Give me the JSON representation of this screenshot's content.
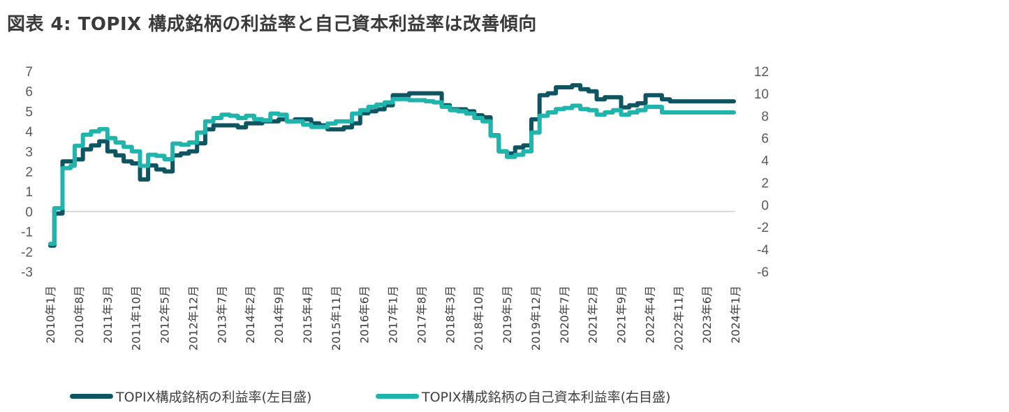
{
  "title": "図表 4: TOPIX 構成銘柄の利益率と自己資本利益率は改善傾向",
  "colors": {
    "series1": "#0f5561",
    "series2": "#1fb4ac",
    "zero_line": "#d9d9d9",
    "text": "#595959"
  },
  "chart_data": {
    "type": "line",
    "title": "図表 4: TOPIX 構成銘柄の利益率と自己資本利益率は改善傾向",
    "x_tick_labels": [
      "2010年1月",
      "2010年8月",
      "2011年3月",
      "2011年10月",
      "2012年5月",
      "2012年12月",
      "2013年7月",
      "2014年2月",
      "2014年9月",
      "2015年4月",
      "2015年11月",
      "2016年6月",
      "2017年1月",
      "2017年8月",
      "2018年3月",
      "2018年10月",
      "2019年5月",
      "2019年12月",
      "2020年7月",
      "2021年2月",
      "2021年9月",
      "2022年4月",
      "2022年11月",
      "2023年6月",
      "2024年1月"
    ],
    "y_left": {
      "range": [
        -3,
        7
      ],
      "ticks": [
        -3,
        -2,
        -1,
        0,
        1,
        2,
        3,
        4,
        5,
        6,
        7
      ]
    },
    "y_right": {
      "range": [
        -6,
        12
      ],
      "ticks": [
        -6,
        -4,
        -2,
        0,
        2,
        4,
        6,
        8,
        10,
        12
      ]
    },
    "grid": false,
    "legend_position": "bottom",
    "series": [
      {
        "name": "TOPIX構成銘柄の利益率(左目盛)",
        "axis": "left",
        "points": [
          [
            "2010-01",
            -1.7
          ],
          [
            "2010-02",
            -0.1
          ],
          [
            "2010-04",
            2.5
          ],
          [
            "2010-06",
            2.5
          ],
          [
            "2010-07",
            2.6
          ],
          [
            "2010-09",
            3.1
          ],
          [
            "2010-11",
            3.3
          ],
          [
            "2011-01",
            3.5
          ],
          [
            "2011-03",
            3.0
          ],
          [
            "2011-05",
            2.8
          ],
          [
            "2011-07",
            2.5
          ],
          [
            "2011-09",
            2.4
          ],
          [
            "2011-11",
            1.6
          ],
          [
            "2012-01",
            2.3
          ],
          [
            "2012-03",
            2.1
          ],
          [
            "2012-05",
            2.0
          ],
          [
            "2012-07",
            2.8
          ],
          [
            "2012-09",
            2.9
          ],
          [
            "2012-11",
            3.0
          ],
          [
            "2013-01",
            3.4
          ],
          [
            "2013-03",
            4.1
          ],
          [
            "2013-05",
            4.3
          ],
          [
            "2013-07",
            4.3
          ],
          [
            "2013-09",
            4.3
          ],
          [
            "2013-11",
            4.2
          ],
          [
            "2014-01",
            4.4
          ],
          [
            "2014-03",
            4.4
          ],
          [
            "2014-05",
            4.5
          ],
          [
            "2014-07",
            4.5
          ],
          [
            "2014-09",
            4.6
          ],
          [
            "2014-11",
            4.5
          ],
          [
            "2015-01",
            4.6
          ],
          [
            "2015-03",
            4.6
          ],
          [
            "2015-05",
            4.4
          ],
          [
            "2015-07",
            4.3
          ],
          [
            "2015-09",
            4.1
          ],
          [
            "2015-11",
            4.1
          ],
          [
            "2016-01",
            4.2
          ],
          [
            "2016-03",
            4.4
          ],
          [
            "2016-05",
            4.9
          ],
          [
            "2016-07",
            5.0
          ],
          [
            "2016-09",
            5.1
          ],
          [
            "2016-11",
            5.3
          ],
          [
            "2017-01",
            5.8
          ],
          [
            "2017-03",
            5.8
          ],
          [
            "2017-05",
            5.9
          ],
          [
            "2017-07",
            5.9
          ],
          [
            "2017-09",
            5.9
          ],
          [
            "2017-11",
            5.9
          ],
          [
            "2018-01",
            5.3
          ],
          [
            "2018-03",
            5.1
          ],
          [
            "2018-05",
            5.1
          ],
          [
            "2018-07",
            5.0
          ],
          [
            "2018-09",
            4.8
          ],
          [
            "2018-11",
            4.7
          ],
          [
            "2019-01",
            3.8
          ],
          [
            "2019-03",
            3.0
          ],
          [
            "2019-05",
            2.9
          ],
          [
            "2019-07",
            3.2
          ],
          [
            "2019-09",
            3.3
          ],
          [
            "2019-11",
            4.6
          ],
          [
            "2020-01",
            5.8
          ],
          [
            "2020-03",
            5.9
          ],
          [
            "2020-05",
            6.2
          ],
          [
            "2020-07",
            6.2
          ],
          [
            "2020-09",
            6.3
          ],
          [
            "2020-11",
            6.1
          ],
          [
            "2021-01",
            6.0
          ],
          [
            "2021-03",
            5.6
          ],
          [
            "2021-05",
            5.7
          ],
          [
            "2021-07",
            5.7
          ],
          [
            "2021-09",
            5.2
          ],
          [
            "2021-11",
            5.3
          ],
          [
            "2022-01",
            5.4
          ],
          [
            "2022-03",
            5.8
          ],
          [
            "2022-05",
            5.8
          ],
          [
            "2022-07",
            5.6
          ],
          [
            "2022-09",
            5.5
          ]
        ]
      },
      {
        "name": "TOPIX構成銘柄の自己資本利益率(右目盛)",
        "axis": "right",
        "points": [
          [
            "2010-01",
            -3.5
          ],
          [
            "2010-02",
            -0.3
          ],
          [
            "2010-04",
            3.3
          ],
          [
            "2010-06",
            3.5
          ],
          [
            "2010-07",
            5.3
          ],
          [
            "2010-09",
            6.3
          ],
          [
            "2010-11",
            6.6
          ],
          [
            "2011-01",
            6.8
          ],
          [
            "2011-03",
            6.0
          ],
          [
            "2011-05",
            5.6
          ],
          [
            "2011-07",
            5.2
          ],
          [
            "2011-09",
            4.8
          ],
          [
            "2011-11",
            3.5
          ],
          [
            "2012-01",
            4.5
          ],
          [
            "2012-03",
            4.4
          ],
          [
            "2012-05",
            4.1
          ],
          [
            "2012-07",
            5.5
          ],
          [
            "2012-09",
            5.4
          ],
          [
            "2012-11",
            5.6
          ],
          [
            "2013-01",
            6.5
          ],
          [
            "2013-03",
            7.5
          ],
          [
            "2013-05",
            7.8
          ],
          [
            "2013-07",
            8.1
          ],
          [
            "2013-09",
            8.0
          ],
          [
            "2013-11",
            7.8
          ],
          [
            "2014-01",
            8.0
          ],
          [
            "2014-03",
            7.7
          ],
          [
            "2014-05",
            7.6
          ],
          [
            "2014-07",
            8.2
          ],
          [
            "2014-09",
            8.1
          ],
          [
            "2014-11",
            7.5
          ],
          [
            "2015-01",
            7.5
          ],
          [
            "2015-03",
            7.2
          ],
          [
            "2015-05",
            7.0
          ],
          [
            "2015-07",
            7.0
          ],
          [
            "2015-09",
            7.3
          ],
          [
            "2015-11",
            7.5
          ],
          [
            "2016-01",
            7.5
          ],
          [
            "2016-03",
            8.2
          ],
          [
            "2016-05",
            8.5
          ],
          [
            "2016-07",
            8.8
          ],
          [
            "2016-09",
            9.0
          ],
          [
            "2016-11",
            9.2
          ],
          [
            "2017-01",
            9.5
          ],
          [
            "2017-03",
            9.5
          ],
          [
            "2017-05",
            9.4
          ],
          [
            "2017-07",
            9.4
          ],
          [
            "2017-09",
            9.3
          ],
          [
            "2017-11",
            9.2
          ],
          [
            "2018-01",
            8.8
          ],
          [
            "2018-03",
            8.5
          ],
          [
            "2018-05",
            8.4
          ],
          [
            "2018-07",
            8.2
          ],
          [
            "2018-09",
            7.8
          ],
          [
            "2018-11",
            7.5
          ],
          [
            "2019-01",
            6.2
          ],
          [
            "2019-03",
            4.8
          ],
          [
            "2019-05",
            4.3
          ],
          [
            "2019-07",
            4.5
          ],
          [
            "2019-09",
            4.8
          ],
          [
            "2019-11",
            6.5
          ],
          [
            "2020-01",
            8.0
          ],
          [
            "2020-03",
            8.3
          ],
          [
            "2020-05",
            8.6
          ],
          [
            "2020-07",
            8.7
          ],
          [
            "2020-09",
            8.9
          ],
          [
            "2020-11",
            8.6
          ],
          [
            "2021-01",
            8.5
          ],
          [
            "2021-03",
            8.1
          ],
          [
            "2021-05",
            8.3
          ],
          [
            "2021-07",
            8.5
          ],
          [
            "2021-09",
            8.1
          ],
          [
            "2021-11",
            8.3
          ],
          [
            "2022-01",
            8.5
          ],
          [
            "2022-03",
            8.8
          ],
          [
            "2022-05",
            8.8
          ],
          [
            "2022-07",
            8.3
          ],
          [
            "2022-09",
            8.3
          ]
        ]
      }
    ]
  }
}
